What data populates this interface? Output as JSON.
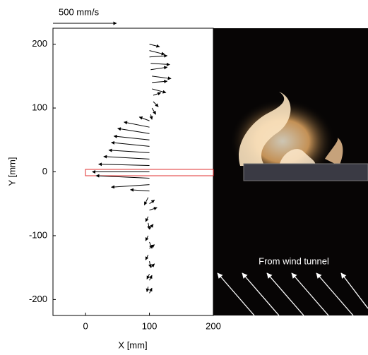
{
  "chart_data": {
    "type": "quiver",
    "xlabel": "X [mm]",
    "ylabel": "Y [mm]",
    "annotation": "From wind tunnel",
    "reference": {
      "value": 500,
      "label": "500 mm/s"
    },
    "color": "#000000",
    "xlim": [
      -51,
      200
    ],
    "ylim": [
      -225,
      225
    ],
    "xticks": [
      0,
      100,
      200
    ],
    "yticks": [
      -200,
      -100,
      0,
      100,
      200
    ],
    "x": [
      100,
      100,
      100,
      102,
      102,
      104,
      104,
      104,
      106,
      106,
      104,
      102,
      100,
      100,
      100,
      100,
      100,
      100,
      100,
      100,
      100,
      100,
      100,
      100,
      98,
      100,
      100,
      98,
      98,
      100,
      98,
      100,
      100,
      98,
      100,
      102,
      100,
      100,
      98,
      100
    ],
    "y": [
      200,
      190,
      180,
      170,
      160,
      150,
      140,
      130,
      120,
      110,
      100,
      90,
      80,
      70,
      60,
      50,
      40,
      30,
      20,
      10,
      0,
      -10,
      -20,
      -30,
      -40,
      -50,
      -60,
      -70,
      -80,
      -90,
      -100,
      -110,
      -120,
      -130,
      -140,
      -150,
      -160,
      -170,
      -180,
      -190
    ],
    "u": [
      80,
      120,
      140,
      150,
      130,
      150,
      120,
      110,
      60,
      40,
      30,
      10,
      -80,
      -200,
      -250,
      -280,
      -300,
      -320,
      -360,
      -400,
      -450,
      -420,
      -300,
      -150,
      -30,
      40,
      60,
      -20,
      10,
      30,
      -20,
      20,
      40,
      -20,
      10,
      30,
      -20,
      20,
      -10,
      20
    ],
    "v": [
      -20,
      -30,
      10,
      -10,
      20,
      -20,
      10,
      -30,
      20,
      -40,
      -50,
      -40,
      30,
      40,
      40,
      30,
      30,
      20,
      20,
      10,
      0,
      20,
      -20,
      10,
      -60,
      30,
      20,
      -40,
      -50,
      40,
      -40,
      -50,
      30,
      -40,
      -50,
      30,
      -40,
      40,
      -40,
      40
    ]
  }
}
